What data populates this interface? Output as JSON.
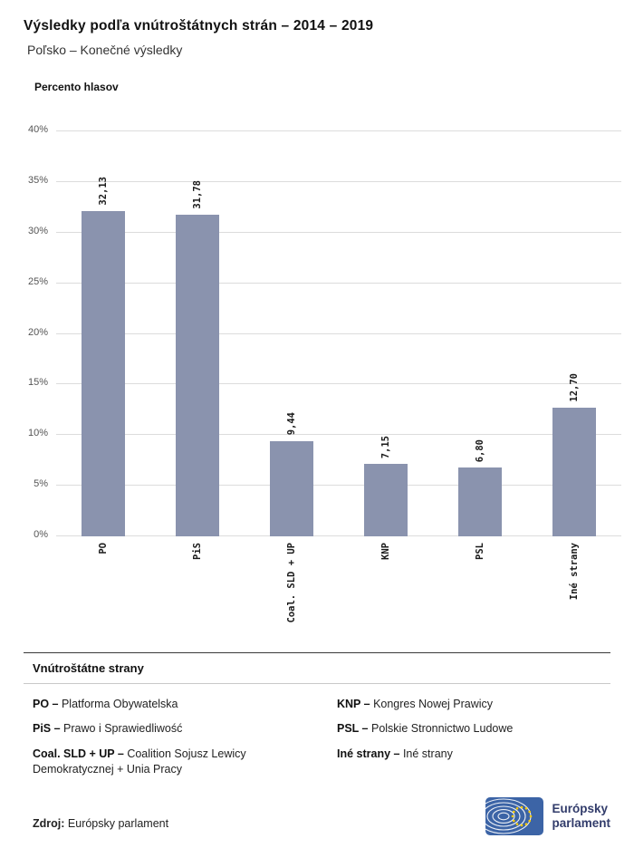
{
  "header": {
    "title": "Výsledky podľa vnútroštátnych strán – 2014 – 2019",
    "subtitle": "Poľsko – Konečné výsledky"
  },
  "chart": {
    "axis_title": "Percento hlasov"
  },
  "chart_data": {
    "type": "bar",
    "title": "Výsledky podľa vnútroštátnych strán – 2014 – 2019",
    "subtitle": "Poľsko – Konečné výsledky",
    "categories": [
      "PO",
      "PiS",
      "Coal. SLD + UP",
      "KNP",
      "PSL",
      "Iné strany"
    ],
    "values": [
      32.13,
      31.78,
      9.44,
      7.15,
      6.8,
      12.7
    ],
    "value_labels": [
      "32,13",
      "31,78",
      "9,44",
      "7,15",
      "6,80",
      "12,70"
    ],
    "xlabel": "",
    "ylabel": "Percento hlasov",
    "ylim": [
      0,
      40
    ],
    "ytick_step": 5,
    "ytick_labels": [
      "0%",
      "5%",
      "10%",
      "15%",
      "20%",
      "25%",
      "30%",
      "35%",
      "40%"
    ],
    "grid": true,
    "legend_position": "none",
    "bar_color": "#8a93ae"
  },
  "legend": {
    "heading": "Vnútroštátne strany",
    "columns": [
      [
        {
          "term": "PO –",
          "definition": "Platforma Obywatelska"
        },
        {
          "term": "PiS –",
          "definition": "Prawo i Sprawiedliwość"
        },
        {
          "term": "Coal. SLD + UP –",
          "definition": "Coalition Sojusz Lewicy Demokratycznej + Unia Pracy"
        }
      ],
      [
        {
          "term": "KNP –",
          "definition": "Kongres Nowej Prawicy"
        },
        {
          "term": "PSL –",
          "definition": "Polskie Stronnictwo Ludowe"
        },
        {
          "term": "Iné strany –",
          "definition": "Iné strany"
        }
      ]
    ]
  },
  "footer": {
    "source_label": "Zdroj:",
    "source_value": "Európsky parlament",
    "logo_line1": "Európsky",
    "logo_line2": "parlament"
  },
  "colors": {
    "bar": "#8a93ae",
    "gridline": "#dcdcdc",
    "logo_blue": "#3c64a6",
    "logo_star_yellow": "#ffcc00",
    "logo_text": "#323c6b"
  }
}
